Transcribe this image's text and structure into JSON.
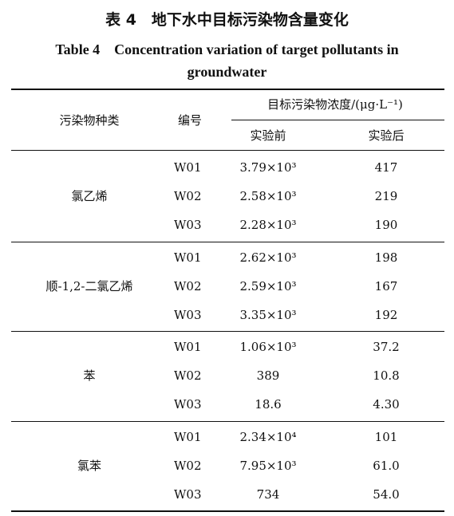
{
  "title_zh": "表 4　地下水中目标污染物含量变化",
  "title_en": "Table 4　Concentration variation of target pollutants in groundwater",
  "table": {
    "headers": {
      "type": "污染物种类",
      "code": "编号",
      "conc": "目标污染物浓度/(μg·L⁻¹)",
      "before": "实验前",
      "after": "实验后"
    },
    "groups": [
      {
        "name": "氯乙烯",
        "rows": [
          [
            "W01",
            "3.79×10³",
            "417"
          ],
          [
            "W02",
            "2.58×10³",
            "219"
          ],
          [
            "W03",
            "2.28×10³",
            "190"
          ]
        ]
      },
      {
        "name": "顺-1,2-二氯乙烯",
        "rows": [
          [
            "W01",
            "2.62×10³",
            "198"
          ],
          [
            "W02",
            "2.59×10³",
            "167"
          ],
          [
            "W03",
            "3.35×10³",
            "192"
          ]
        ]
      },
      {
        "name": "苯",
        "rows": [
          [
            "W01",
            "1.06×10³",
            "37.2"
          ],
          [
            "W02",
            "389",
            "10.8"
          ],
          [
            "W03",
            "18.6",
            "4.30"
          ]
        ]
      },
      {
        "name": "氯苯",
        "rows": [
          [
            "W01",
            "2.34×10⁴",
            "101"
          ],
          [
            "W02",
            "7.95×10³",
            "61.0"
          ],
          [
            "W03",
            "734",
            "54.0"
          ]
        ]
      }
    ]
  }
}
